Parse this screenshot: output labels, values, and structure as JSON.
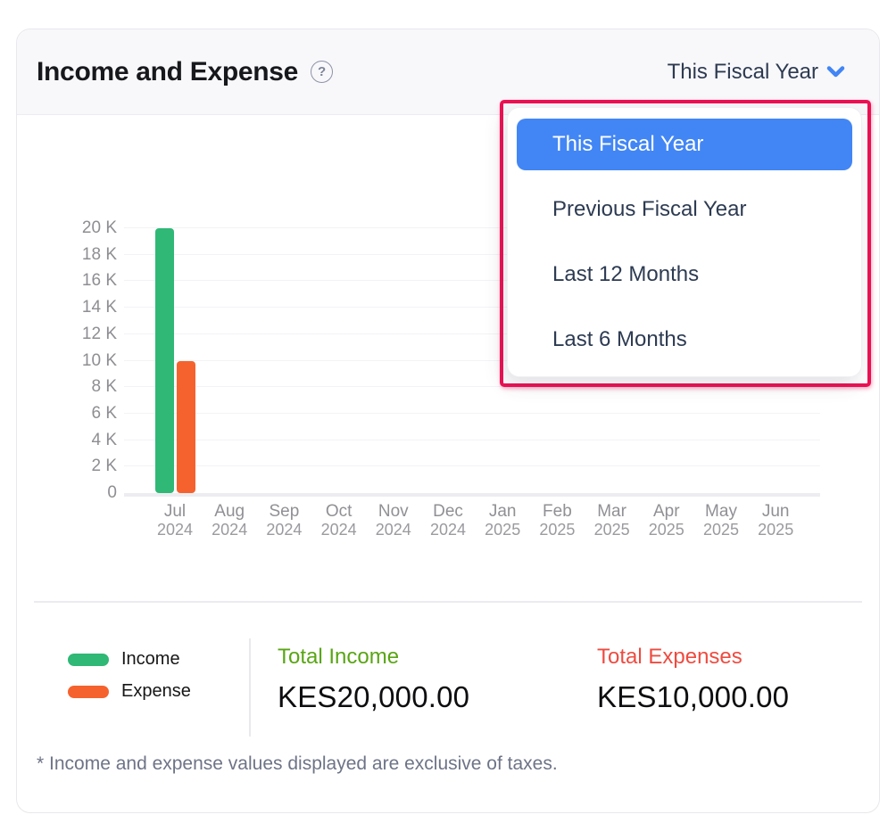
{
  "header": {
    "title": "Income and Expense",
    "help_glyph": "?",
    "period_selector": {
      "value": "This Fiscal Year",
      "chevron_color": "#4285f4"
    }
  },
  "dropdown": {
    "items": [
      {
        "label": "This Fiscal Year",
        "selected": true
      },
      {
        "label": "Previous Fiscal Year",
        "selected": false
      },
      {
        "label": "Last 12 Months",
        "selected": false
      },
      {
        "label": "Last 6 Months",
        "selected": false
      }
    ],
    "selected_bg": "#4286f5",
    "annotation_border": "#ed1153"
  },
  "chart_data": {
    "type": "bar",
    "title": "Income and Expense",
    "categories": [
      "Jul 2024",
      "Aug 2024",
      "Sep 2024",
      "Oct 2024",
      "Nov 2024",
      "Dec 2024",
      "Jan 2025",
      "Feb 2025",
      "Mar 2025",
      "Apr 2025",
      "May 2025",
      "Jun 2025"
    ],
    "series": [
      {
        "name": "Income",
        "color": "#2fb876",
        "values": [
          20000,
          0,
          0,
          0,
          0,
          0,
          0,
          0,
          0,
          0,
          0,
          0
        ]
      },
      {
        "name": "Expense",
        "color": "#f6622d",
        "values": [
          10000,
          0,
          0,
          0,
          0,
          0,
          0,
          0,
          0,
          0,
          0,
          0
        ]
      }
    ],
    "ylim": [
      0,
      20000
    ],
    "ytick_step": 2000,
    "ytick_labels": [
      "0",
      "2 K",
      "4 K",
      "6 K",
      "8 K",
      "10 K",
      "12 K",
      "14 K",
      "16 K",
      "18 K",
      "20 K"
    ],
    "grid": true,
    "legend_position": "bottom-left"
  },
  "summary": {
    "total_income": {
      "label": "Total Income",
      "value": "KES20,000.00",
      "color": "#59a514"
    },
    "total_expenses": {
      "label": "Total Expenses",
      "value": "KES10,000.00",
      "color": "#ee4b40"
    }
  },
  "footnote": "* Income and expense values displayed are exclusive of taxes."
}
